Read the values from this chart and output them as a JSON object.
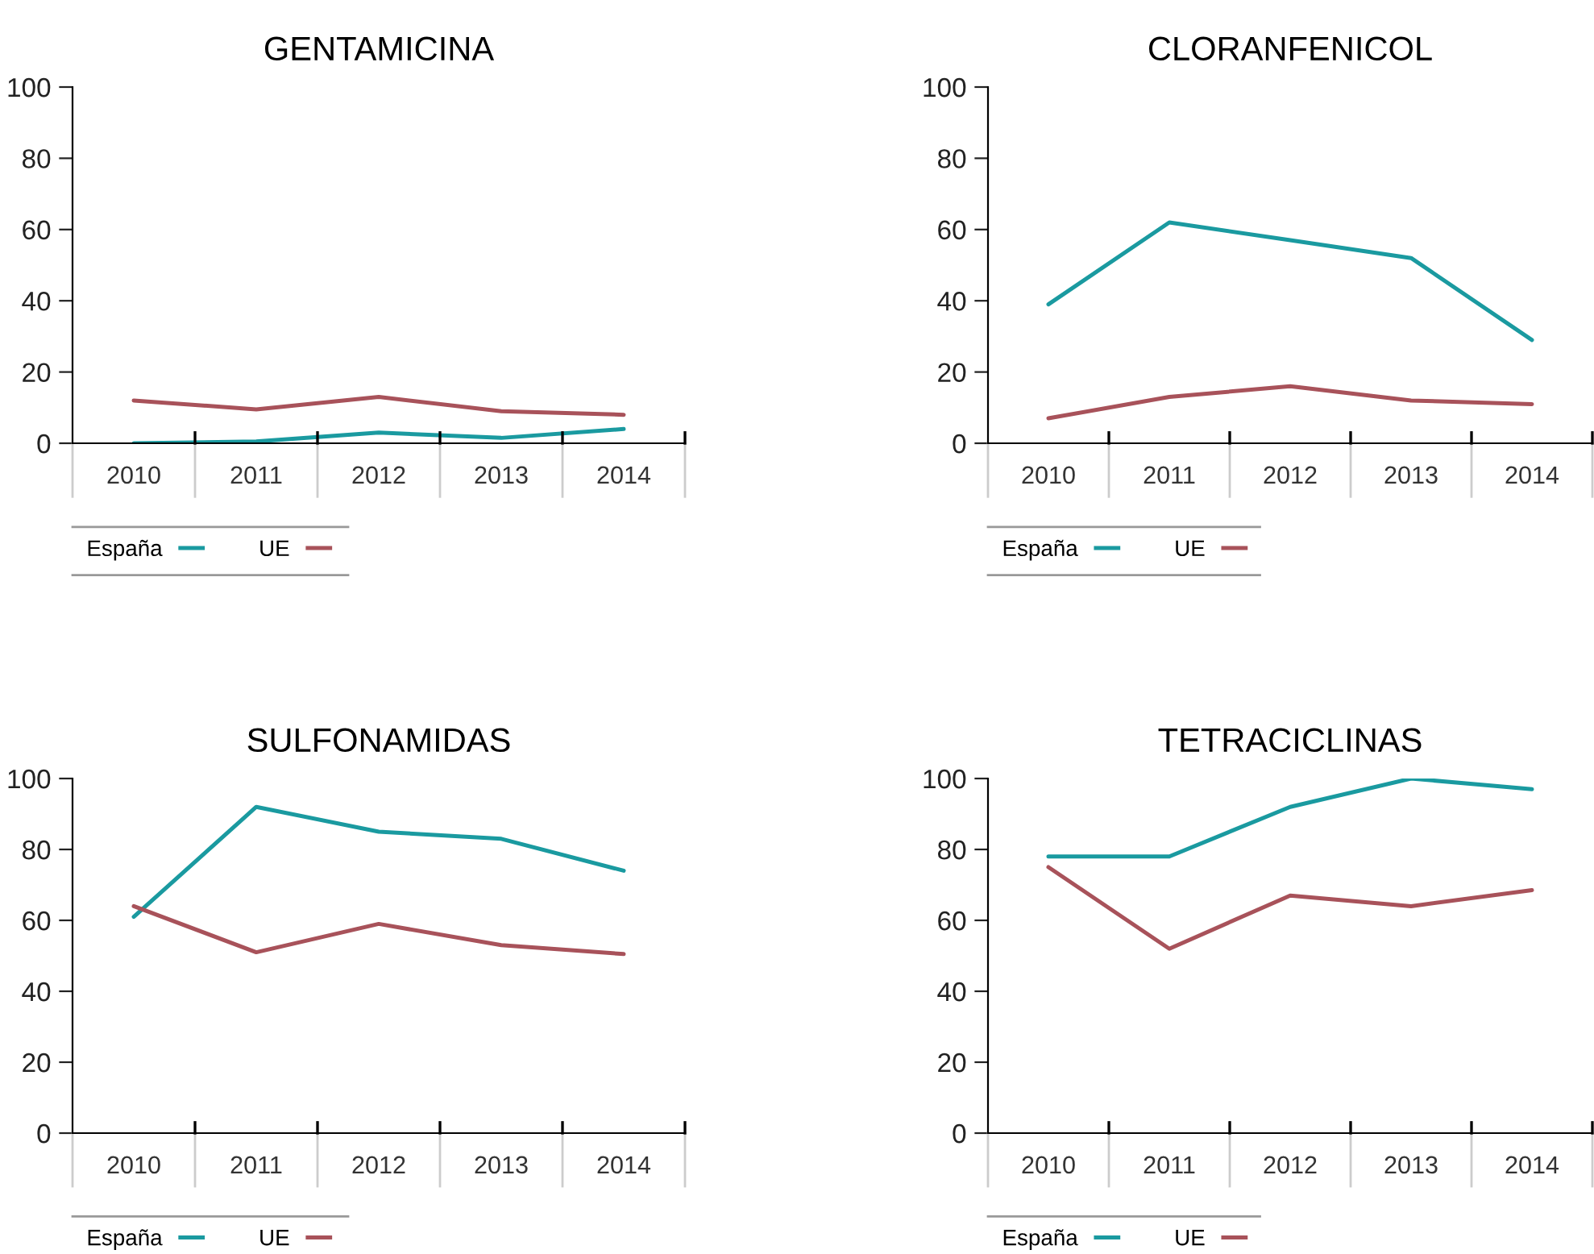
{
  "chart_data": [
    {
      "type": "line",
      "title": "GENTAMICINA",
      "categories": [
        "2010",
        "2011",
        "2012",
        "2013",
        "2014"
      ],
      "ylim": [
        0,
        100
      ],
      "yticks": [
        0,
        20,
        40,
        60,
        80,
        100
      ],
      "grid": false,
      "legend": "bottom",
      "marker": "none",
      "line_style": "solid",
      "series": [
        {
          "name": "España",
          "color": "#1a9aa0",
          "values": [
            0,
            0.5,
            3,
            1.5,
            4
          ]
        },
        {
          "name": "UE",
          "color": "#a8525a",
          "values": [
            12,
            9.5,
            13,
            9,
            8
          ]
        }
      ]
    },
    {
      "type": "line",
      "title": "CLORANFENICOL",
      "categories": [
        "2010",
        "2011",
        "2012",
        "2013",
        "2014"
      ],
      "ylim": [
        0,
        100
      ],
      "yticks": [
        0,
        20,
        40,
        60,
        80,
        100
      ],
      "grid": false,
      "legend": "bottom",
      "marker": "none",
      "line_style": "solid",
      "series": [
        {
          "name": "España",
          "color": "#1a9aa0",
          "values": [
            39,
            62,
            57,
            52,
            29
          ]
        },
        {
          "name": "UE",
          "color": "#a8525a",
          "values": [
            7,
            13,
            16,
            12,
            11
          ]
        }
      ]
    },
    {
      "type": "line",
      "title": "SULFONAMIDAS",
      "categories": [
        "2010",
        "2011",
        "2012",
        "2013",
        "2014"
      ],
      "ylim": [
        0,
        100
      ],
      "yticks": [
        0,
        20,
        40,
        60,
        80,
        100
      ],
      "grid": false,
      "legend": "bottom",
      "marker": "none",
      "line_style": "solid",
      "series": [
        {
          "name": "España",
          "color": "#1a9aa0",
          "values": [
            61,
            92,
            85,
            83,
            74
          ]
        },
        {
          "name": "UE",
          "color": "#a8525a",
          "values": [
            64,
            51,
            59,
            53,
            50.5
          ]
        }
      ]
    },
    {
      "type": "line",
      "title": "TETRACICLINAS",
      "categories": [
        "2010",
        "2011",
        "2012",
        "2013",
        "2014"
      ],
      "ylim": [
        0,
        100
      ],
      "yticks": [
        0,
        20,
        40,
        60,
        80,
        100
      ],
      "grid": false,
      "legend": "bottom",
      "marker": "none",
      "line_style": "solid",
      "series": [
        {
          "name": "España",
          "color": "#1a9aa0",
          "values": [
            78,
            78,
            92,
            100,
            97
          ]
        },
        {
          "name": "UE",
          "color": "#a8525a",
          "values": [
            75,
            52,
            67,
            64,
            68.5
          ]
        }
      ]
    }
  ]
}
